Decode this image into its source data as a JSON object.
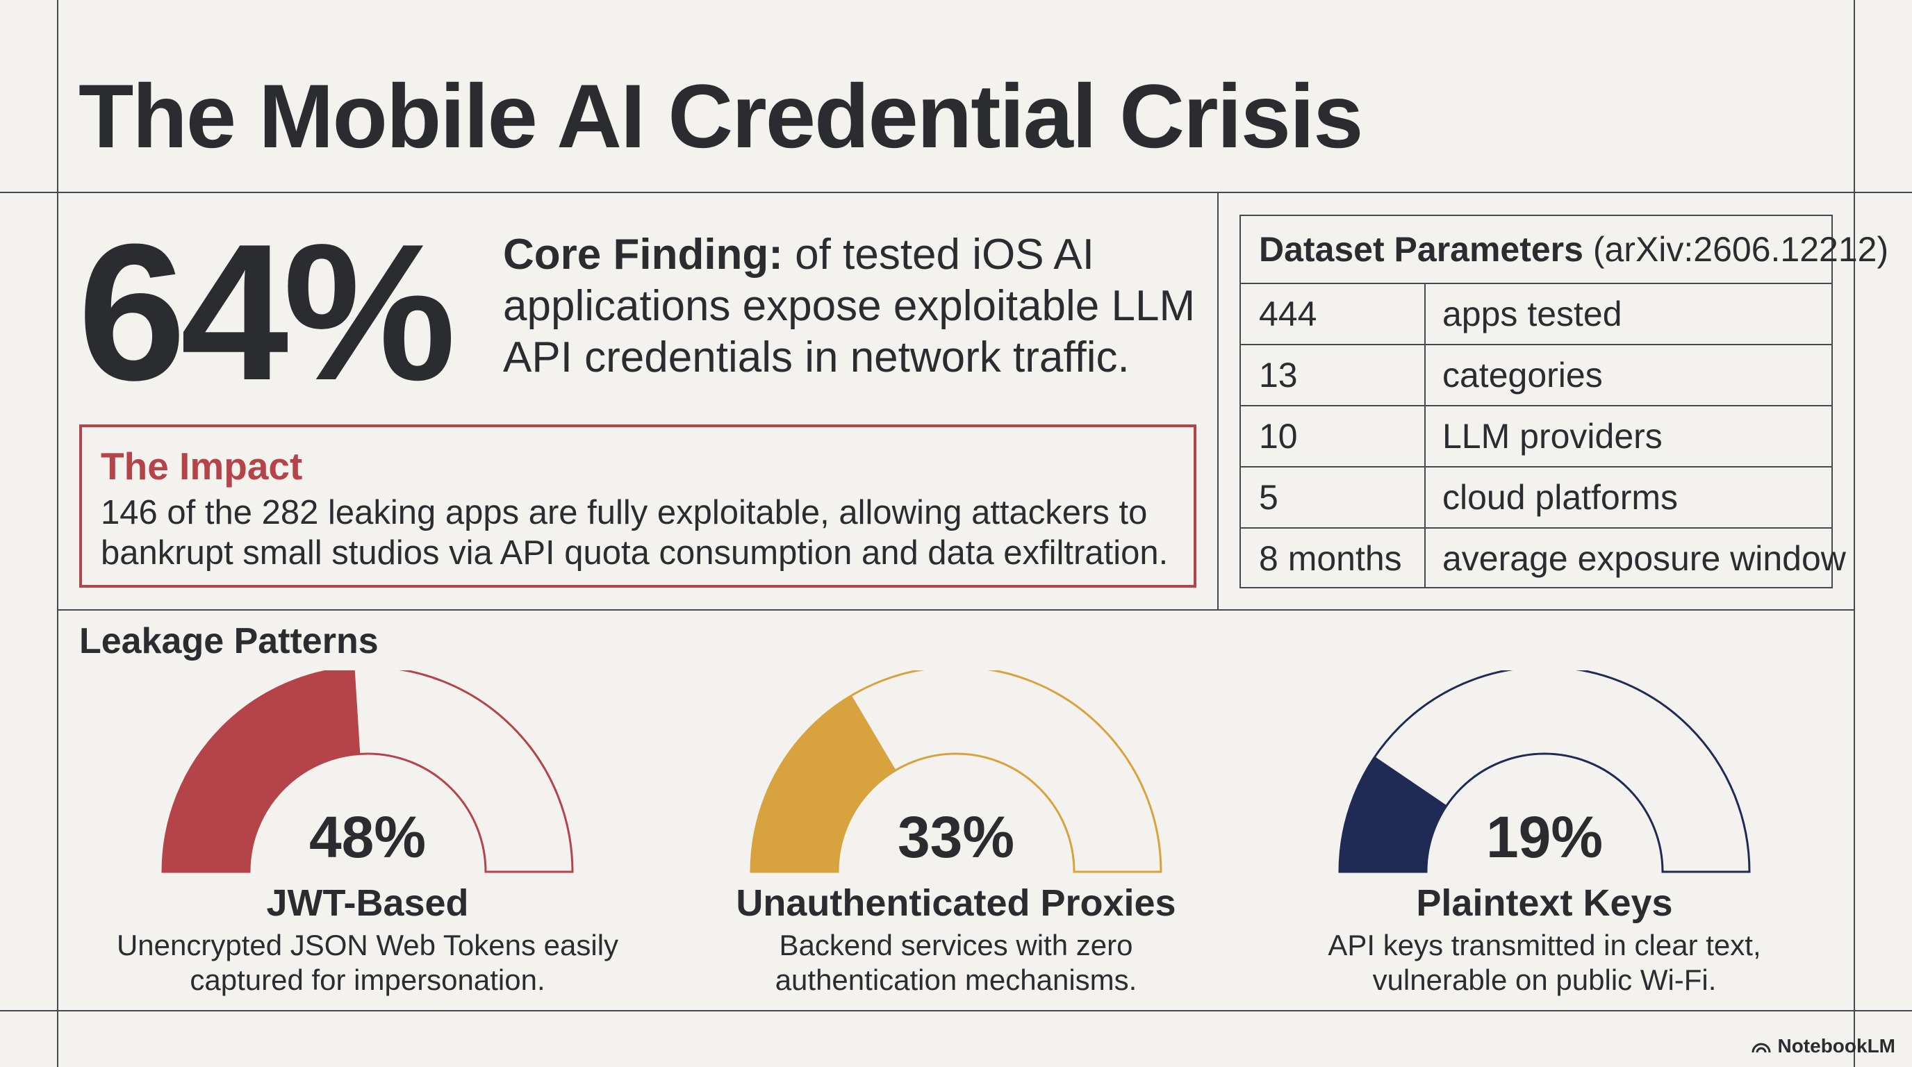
{
  "title": "The Mobile AI Credential Crisis",
  "headline": {
    "stat": "64%",
    "core_label": "Core Finding:",
    "core_text": " of tested iOS AI applications expose exploitable LLM API credentials in network traffic."
  },
  "impact": {
    "title": "The Impact",
    "body": "146 of the 282 leaking apps are fully exploitable, allowing attackers to bankrupt small studios via API quota consumption and data exfiltration."
  },
  "dataset": {
    "title": "Dataset Parameters",
    "source": " (arXiv:2606.12212)",
    "rows": [
      {
        "value": "444",
        "label": "apps tested"
      },
      {
        "value": "13",
        "label": "categories"
      },
      {
        "value": "10",
        "label": "LLM providers"
      },
      {
        "value": "5",
        "label": "cloud platforms"
      },
      {
        "value": "8 months",
        "label": "average exposure window"
      }
    ]
  },
  "leakage": {
    "title": "Leakage Patterns",
    "gauges": [
      {
        "percent_label": "48%",
        "fraction": 0.48,
        "name": "JWT-Based",
        "description": "Unencrypted JSON Web Tokens easily captured for impersonation.",
        "color": "#b4444a"
      },
      {
        "percent_label": "33%",
        "fraction": 0.33,
        "name": "Unauthenticated Proxies",
        "description": "Backend services with zero authentication mechanisms.",
        "color": "#d8a33e"
      },
      {
        "percent_label": "19%",
        "fraction": 0.19,
        "name": "Plaintext Keys",
        "description": "API keys transmitted in clear text, vulnerable on public Wi-Fi.",
        "color": "#1f2a55"
      }
    ]
  },
  "brand": {
    "icon": "notebooklm-icon",
    "label": "NotebookLM"
  }
}
